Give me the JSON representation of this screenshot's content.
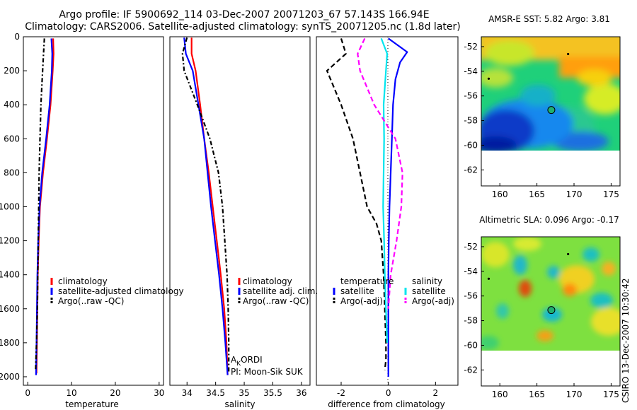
{
  "title": {
    "line1": "Argo profile: IF 5900692_114 03-Dec-2007 20071203_67 57.143S 166.94E",
    "line2": "Climatology: CARS2006. Satellite-adjusted climatology: synTS_20071205.nc (1.8d later)"
  },
  "credit": "CSIRO 13-Dec-2007 10:30:42",
  "annotation": {
    "a_main": "A",
    "a_sub": "K",
    "a_rest": "ORDI",
    "pi": "PI: Moon-Sik SUK"
  },
  "colors": {
    "climatology": "#ff0000",
    "satellite": "#0000ff",
    "argo": "#000000",
    "salinity_satellite": "#00e5ee",
    "salinity_argo": "#ff00ff"
  },
  "chart_data": [
    {
      "type": "line",
      "name": "temperature-panel",
      "xlabel": "temperature",
      "ylabel": "",
      "xlim": [
        -1,
        31
      ],
      "ylim": [
        2050,
        0
      ],
      "xticks": [
        0,
        10,
        20,
        30
      ],
      "yticks": [
        0,
        200,
        400,
        600,
        800,
        1000,
        1200,
        1400,
        1600,
        1800,
        2000
      ],
      "legend": [
        "climatology",
        "satellite-adjusted climatology",
        "Argo(..raw -QC)"
      ],
      "series": [
        {
          "name": "climatology",
          "color": "#ff0000",
          "dash": "",
          "x": [
            5.8,
            5.9,
            5.7,
            5.2,
            4.4,
            3.5,
            2.8,
            2.5,
            2.3,
            2.2,
            2.1,
            2.0
          ],
          "y": [
            10,
            100,
            200,
            400,
            600,
            800,
            1000,
            1200,
            1400,
            1600,
            1800,
            1980
          ]
        },
        {
          "name": "satellite-adjusted climatology",
          "color": "#0000ff",
          "dash": "",
          "x": [
            5.4,
            5.6,
            5.5,
            5.0,
            4.2,
            3.3,
            2.7,
            2.4,
            2.2,
            2.1,
            2.0,
            1.9
          ],
          "y": [
            10,
            100,
            200,
            400,
            600,
            800,
            1000,
            1200,
            1400,
            1600,
            1800,
            1990
          ]
        },
        {
          "name": "Argo(..raw -QC)",
          "color": "#000000",
          "dash": "6 3 2 3",
          "x": [
            3.8,
            3.6,
            3.4,
            3.0,
            2.8,
            2.6,
            2.5,
            2.4,
            2.3,
            2.2,
            2.0,
            1.8
          ],
          "y": [
            10,
            100,
            200,
            400,
            600,
            800,
            1000,
            1200,
            1400,
            1600,
            1800,
            1960
          ]
        }
      ]
    },
    {
      "type": "line",
      "name": "salinity-panel",
      "xlabel": "salinity",
      "ylabel": "",
      "xlim": [
        33.7,
        36.15
      ],
      "ylim": [
        2050,
        0
      ],
      "xticks": [
        34,
        34.5,
        35,
        35.5,
        36
      ],
      "legend": [
        "climatology",
        "satellite adj. clim.",
        "Argo(..raw -QC)"
      ],
      "series": [
        {
          "name": "climatology",
          "color": "#ff0000",
          "dash": "",
          "x": [
            34.08,
            34.08,
            34.15,
            34.23,
            34.3,
            34.38,
            34.45,
            34.52,
            34.59,
            34.65,
            34.69,
            34.71
          ],
          "y": [
            5,
            100,
            200,
            400,
            600,
            800,
            1000,
            1200,
            1400,
            1600,
            1800,
            1990
          ]
        },
        {
          "name": "satellite adj. clim.",
          "color": "#0000ff",
          "dash": "",
          "x": [
            33.95,
            33.98,
            34.1,
            34.2,
            34.3,
            34.36,
            34.42,
            34.49,
            34.56,
            34.62,
            34.67,
            34.71
          ],
          "y": [
            5,
            100,
            200,
            400,
            600,
            800,
            1000,
            1200,
            1400,
            1600,
            1800,
            1990
          ]
        },
        {
          "name": "Argo(..raw -QC)",
          "color": "#000000",
          "dash": "6 3 2 3",
          "x": [
            34.0,
            33.92,
            33.95,
            34.18,
            34.4,
            34.55,
            34.62,
            34.66,
            34.7,
            34.72,
            34.73,
            34.73
          ],
          "y": [
            5,
            100,
            200,
            400,
            600,
            800,
            1000,
            1200,
            1400,
            1600,
            1800,
            1970
          ]
        }
      ]
    },
    {
      "type": "line",
      "name": "difference-panel",
      "xlabel": "difference from climatology",
      "ylabel": "",
      "xlim": [
        -3.05,
        2.95
      ],
      "ylim": [
        2050,
        0
      ],
      "xticks": [
        -2,
        0,
        2
      ],
      "legend_temperature": [
        "temperature",
        "satellite",
        "Argo(-adj)"
      ],
      "legend_salinity": [
        "salinity",
        "satellite",
        "Argo(-adj)"
      ],
      "series": [
        {
          "name": "temperature satellite",
          "color": "#0000ff",
          "dash": "",
          "x": [
            0.0,
            0.4,
            0.8,
            0.5,
            0.3,
            0.2,
            0.15,
            0.1,
            0.05,
            0.02,
            0.0,
            0.0,
            0.0,
            0.0,
            0.0
          ],
          "y": [
            10,
            50,
            90,
            150,
            250,
            400,
            600,
            800,
            1000,
            1200,
            1400,
            1600,
            1800,
            1900,
            2000
          ]
        },
        {
          "name": "temperature Argo(-adj)",
          "color": "#000000",
          "dash": "7 4",
          "x": [
            -2.0,
            -1.8,
            -2.6,
            -2.0,
            -1.5,
            -1.2,
            -0.9,
            -0.5,
            -0.3,
            -0.2,
            -0.15,
            -0.1,
            -0.1,
            -0.15
          ],
          "y": [
            10,
            100,
            200,
            400,
            600,
            800,
            1000,
            1100,
            1200,
            1400,
            1600,
            1800,
            1900,
            1960
          ]
        },
        {
          "name": "salinity satellite",
          "color": "#00e5ee",
          "dash": "",
          "x": [
            -0.3,
            -0.05,
            -0.1,
            -0.2,
            -0.18,
            -0.2,
            -0.22,
            -0.18,
            -0.15,
            -0.1,
            -0.05
          ],
          "y": [
            10,
            100,
            200,
            400,
            600,
            800,
            1000,
            1200,
            1400,
            1600,
            1800
          ]
        },
        {
          "name": "salinity Argo(-adj)",
          "color": "#ff00ff",
          "dash": "7 4",
          "x": [
            -1.0,
            -1.3,
            -1.2,
            -0.6,
            0.3,
            0.6,
            0.55,
            0.35,
            0.1,
            0.0
          ],
          "y": [
            10,
            100,
            200,
            400,
            600,
            800,
            1000,
            1200,
            1400,
            1600
          ]
        }
      ]
    },
    {
      "type": "heatmap",
      "name": "sst-map",
      "title": "AMSR-E SST: 5.82 Argo: 3.81",
      "xlim": [
        157.5,
        176.2
      ],
      "ylim": [
        -63.3,
        -51.2
      ],
      "xticks": [
        160,
        165,
        170,
        175
      ],
      "yticks": [
        -52,
        -54,
        -56,
        -58,
        -60,
        -62
      ],
      "data_lat_range": [
        -51.2,
        -60.0
      ],
      "argo_point": [
        166.94,
        -57.143
      ],
      "other_points": [
        [
          169.2,
          -52.6
        ],
        [
          158.5,
          -54.6
        ]
      ]
    },
    {
      "type": "heatmap",
      "name": "sla-map",
      "title": "Altimetric SLA: 0.096 Argo: -0.17",
      "xlim": [
        157.5,
        176.2
      ],
      "ylim": [
        -63.3,
        -51.2
      ],
      "xticks": [
        160,
        165,
        170,
        175
      ],
      "yticks": [
        -52,
        -54,
        -56,
        -58,
        -60,
        -62
      ],
      "data_lat_range": [
        -51.2,
        -60.0
      ],
      "argo_point": [
        166.94,
        -57.143
      ],
      "other_points": [
        [
          169.2,
          -52.6
        ],
        [
          158.5,
          -54.6
        ]
      ]
    }
  ]
}
